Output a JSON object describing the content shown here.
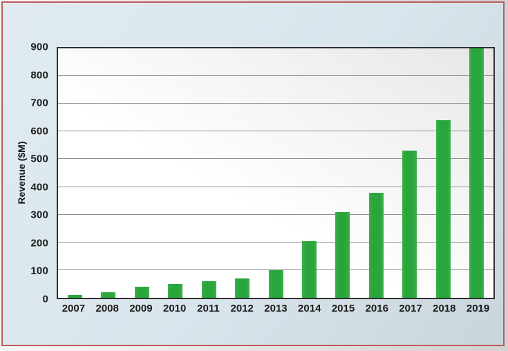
{
  "colors": {
    "panel_border": "#c05a5a",
    "panel_light": "#e0ebf1",
    "panel_dark": "#c9d5db",
    "axis": "#2f2f2f",
    "grid": "#8f8f8f",
    "bar": "#2aa53c",
    "plot_shade": "#e7e7e7",
    "text": "#1b1b1b"
  },
  "chart_data": {
    "type": "bar",
    "title": "",
    "xlabel": "",
    "ylabel": "Revenue ($M)",
    "categories": [
      "2007",
      "2008",
      "2009",
      "2010",
      "2011",
      "2012",
      "2013",
      "2014",
      "2015",
      "2016",
      "2017",
      "2018",
      "2019"
    ],
    "values": [
      10,
      20,
      40,
      50,
      60,
      70,
      100,
      205,
      310,
      380,
      530,
      640,
      900
    ],
    "ylim": [
      0,
      900
    ],
    "ytick_step": 100,
    "grid": true,
    "legend": false,
    "bar_color": "#2aa53c"
  }
}
